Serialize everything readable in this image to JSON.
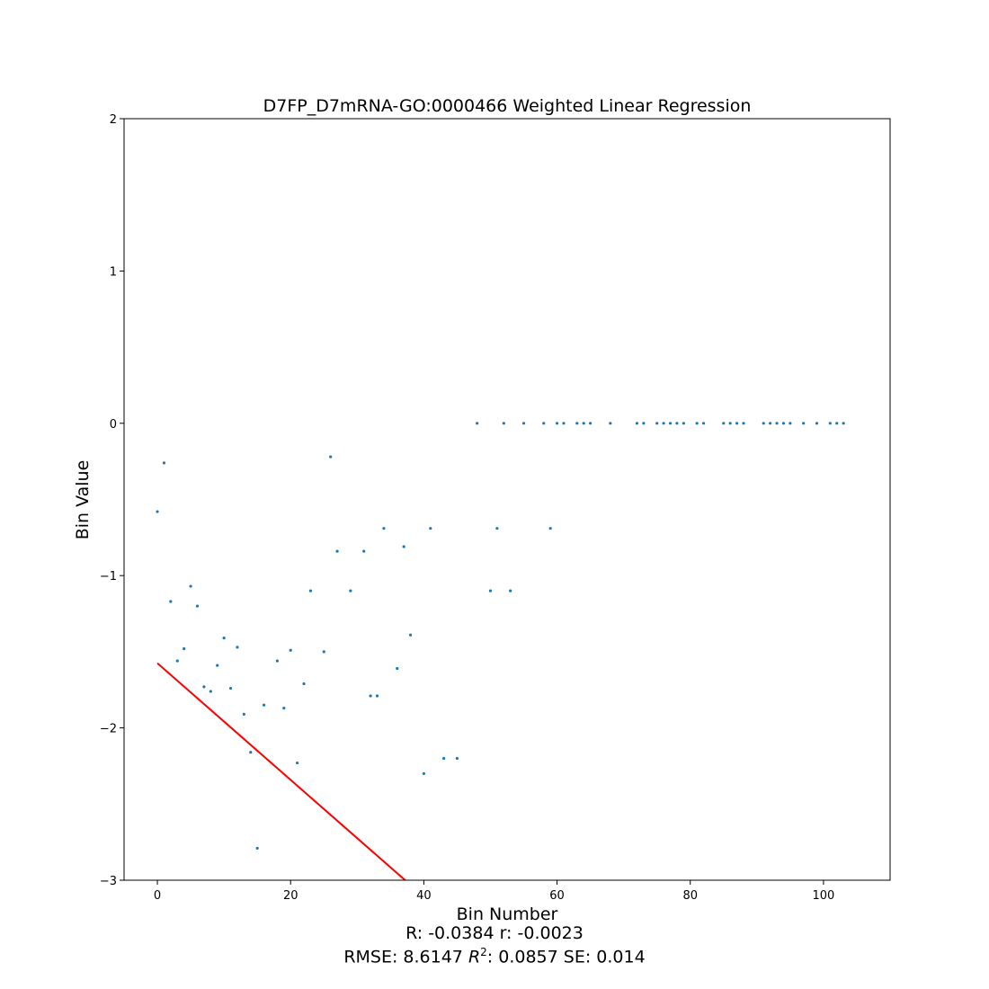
{
  "chart_data": {
    "type": "scatter",
    "title": "D7FP_D7mRNA-GO:0000466 Weighted Linear Regression",
    "xlabel": "Bin Number",
    "ylabel": "Bin Value",
    "xlim": [
      -5,
      110
    ],
    "ylim": [
      -3,
      2
    ],
    "xticks": [
      0,
      20,
      40,
      60,
      80,
      100
    ],
    "yticks": [
      -3,
      -2,
      -1,
      0,
      1,
      2
    ],
    "xtick_labels": [
      "0",
      "20",
      "40",
      "60",
      "80",
      "100"
    ],
    "ytick_labels": [
      "−3",
      "−2",
      "−1",
      "0",
      "1",
      "2"
    ],
    "grid": false,
    "colors": {
      "points": "#1f77b4",
      "fit_line": "#ff0000"
    },
    "series": [
      {
        "marker": "point",
        "x": [
          0,
          1,
          2,
          3,
          4,
          5,
          6,
          7,
          8,
          9,
          10,
          11,
          12,
          13,
          14,
          15,
          16,
          18,
          19,
          20,
          21,
          22,
          23,
          25,
          26,
          27,
          29,
          31,
          32,
          33,
          34,
          36,
          37,
          38,
          40,
          41,
          43,
          45,
          48,
          50,
          51,
          52,
          53,
          55,
          58,
          59,
          60,
          61,
          63,
          64,
          65,
          68,
          72,
          73,
          75,
          76,
          77,
          78,
          79,
          81,
          82,
          85,
          86,
          87,
          88,
          91,
          92,
          93,
          94,
          95,
          97,
          99,
          101,
          102,
          103
        ],
        "y": [
          -0.58,
          -0.26,
          -1.17,
          -1.56,
          -1.48,
          -1.07,
          -1.2,
          -1.73,
          -1.76,
          -1.59,
          -1.41,
          -1.74,
          -1.47,
          -1.91,
          -2.16,
          -2.79,
          -1.85,
          -1.56,
          -1.87,
          -1.49,
          -2.23,
          -1.71,
          -1.1,
          -1.5,
          -0.22,
          -0.84,
          -1.1,
          -0.84,
          -1.79,
          -1.79,
          -0.69,
          -1.61,
          -0.81,
          -1.39,
          -2.3,
          -0.69,
          -2.2,
          -2.2,
          0,
          -1.1,
          -0.69,
          0,
          -1.1,
          0,
          0,
          -0.69,
          0,
          0,
          0,
          0,
          0,
          0,
          0,
          0,
          0,
          0,
          0,
          0,
          0,
          0,
          0,
          0,
          0,
          0,
          0,
          0,
          0,
          0,
          0,
          0,
          0,
          0,
          0,
          0,
          0
        ]
      },
      {
        "marker": "line",
        "x": [
          0,
          37.2
        ],
        "y": [
          -1.575,
          -3.0
        ]
      }
    ]
  },
  "stats": {
    "line1": "R: -0.0384 r: -0.0023",
    "rmse": "RMSE: 8.6147",
    "r2_label": "R",
    "r2_exp": "2",
    "r2_value": ": 0.0857 SE: 0.014"
  }
}
